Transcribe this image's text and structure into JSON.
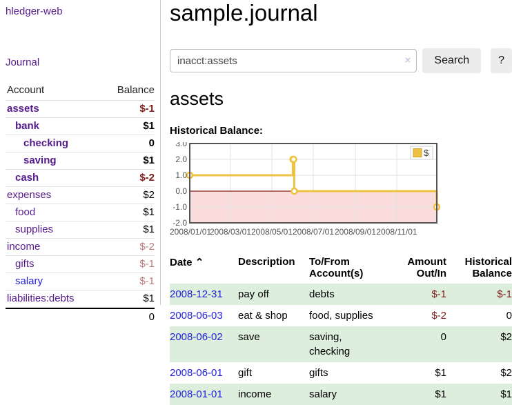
{
  "brand": "hledger-web",
  "nav": {
    "journal": "Journal"
  },
  "sidebar": {
    "col_account": "Account",
    "col_balance": "Balance",
    "accounts": [
      {
        "name": "assets",
        "indent": 1,
        "bold": true,
        "balance": "$-1",
        "balance_style": "negstrong"
      },
      {
        "name": "bank",
        "indent": 2,
        "bold": true,
        "balance": "$1",
        "balance_style": ""
      },
      {
        "name": "checking",
        "indent": 3,
        "bold": true,
        "balance": "0",
        "balance_style": ""
      },
      {
        "name": "saving",
        "indent": 3,
        "bold": true,
        "balance": "$1",
        "balance_style": ""
      },
      {
        "name": "cash",
        "indent": 2,
        "bold": true,
        "balance": "$-2",
        "balance_style": "negstrong"
      },
      {
        "name": "expenses",
        "indent": 1,
        "bold": false,
        "balance": "$2",
        "balance_style": ""
      },
      {
        "name": "food",
        "indent": 2,
        "bold": false,
        "balance": "$1",
        "balance_style": ""
      },
      {
        "name": "supplies",
        "indent": 2,
        "bold": false,
        "balance": "$1",
        "balance_style": ""
      },
      {
        "name": "income",
        "indent": 1,
        "bold": false,
        "balance": "$-2",
        "balance_style": "neg"
      },
      {
        "name": "gifts",
        "indent": 2,
        "bold": false,
        "balance": "$-1",
        "balance_style": "neg"
      },
      {
        "name": "salary",
        "indent": 2,
        "bold": false,
        "balance": "$-1",
        "balance_style": "neg",
        "link_color": "blue"
      },
      {
        "name": "liabilities:debts",
        "indent": 1,
        "bold": false,
        "balance": "$1",
        "balance_style": ""
      }
    ],
    "total": "0"
  },
  "header": {
    "title": "sample.journal"
  },
  "search": {
    "value": "inacct:assets",
    "clear_icon": "×",
    "button": "Search",
    "help": "?"
  },
  "account_page": {
    "title": "assets",
    "chart_label": "Historical Balance:"
  },
  "chart_data": {
    "type": "line",
    "step": true,
    "title": "Historical Balance:",
    "legend": "$",
    "legend_position": "top-right",
    "grid": true,
    "ylim": [
      -2,
      3
    ],
    "y_ticks": [
      3,
      2,
      1,
      0,
      -1,
      -2
    ],
    "y_tick_labels": [
      "3.0",
      "2.0",
      "1.0",
      "0.0",
      "-1.0",
      "-2.0"
    ],
    "x_range_days": [
      0,
      364
    ],
    "x_tick_days": [
      0,
      60,
      121,
      182,
      244,
      305
    ],
    "x_tick_labels": [
      "2008/01/01",
      "2008/03/01",
      "2008/05/01",
      "2008/07/01",
      "2008/09/01",
      "2008/11/01"
    ],
    "series": [
      {
        "name": "$",
        "dates": [
          "2008-01-01",
          "2008-06-01",
          "2008-06-02",
          "2008-06-03",
          "2008-12-31"
        ],
        "x_days": [
          0,
          152,
          153,
          154,
          364
        ],
        "values": [
          1,
          2,
          2,
          0,
          -1
        ]
      }
    ],
    "colors": {
      "line": "#edc240",
      "marker_fill": "#ffffff",
      "negative_region": "#fbdcdc",
      "zero_line": "#8b1c1c",
      "border": "#545454",
      "grid": "#e2e2e2",
      "tick_text": "#545454",
      "legend_border": "#cccccc",
      "legend_text": "#333333"
    }
  },
  "register": {
    "headers": {
      "date": "Date",
      "sort_arrow": "⌃",
      "description": "Description",
      "accounts": "To/From Account(s)",
      "amount": "Amount Out/In",
      "balance": "Historical Balance"
    },
    "rows": [
      {
        "date": "2008-12-31",
        "description": "pay off",
        "accounts": "debts",
        "amount": "$-1",
        "balance": "$-1"
      },
      {
        "date": "2008-06-03",
        "description": "eat & shop",
        "accounts": "food, supplies",
        "amount": "$-2",
        "balance": "0"
      },
      {
        "date": "2008-06-02",
        "description": "save",
        "accounts": "saving, checking",
        "amount": "0",
        "balance": "$2"
      },
      {
        "date": "2008-06-01",
        "description": "gift",
        "accounts": "gifts",
        "amount": "$1",
        "balance": "$2"
      },
      {
        "date": "2008-01-01",
        "description": "income",
        "accounts": "salary",
        "amount": "$1",
        "balance": "$1"
      }
    ]
  },
  "colors": {
    "link_purple": "#551a8b",
    "link_blue": "#2222dd",
    "neg_strong": "#7e1a1a",
    "neg_soft": "#bb7b7b",
    "row_green": "#ddeedd",
    "button_bg": "#ececec"
  }
}
